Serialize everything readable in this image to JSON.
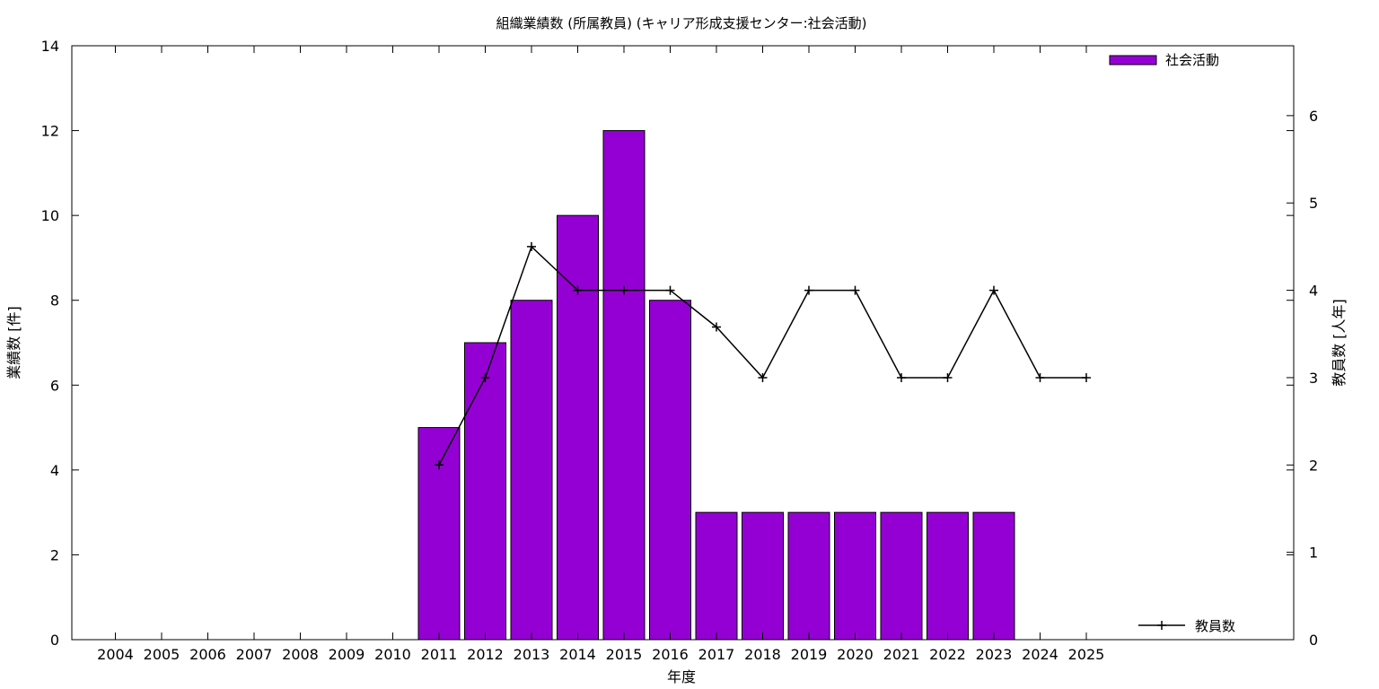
{
  "chart_data": {
    "type": "bar",
    "title": "組織業績数 (所属教員) (キャリア形成支援センター:社会活動)",
    "xlabel": "年度",
    "ylabel": "業績数 [件]",
    "y2label": "教員数 [人年]",
    "categories": [
      "2004",
      "2005",
      "2006",
      "2007",
      "2008",
      "2009",
      "2010",
      "2011",
      "2012",
      "2013",
      "2014",
      "2015",
      "2016",
      "2017",
      "2018",
      "2019",
      "2020",
      "2021",
      "2022",
      "2023",
      "2024",
      "2025"
    ],
    "ylim": [
      0,
      14
    ],
    "y2lim": [
      0,
      6.8
    ],
    "yticks": [
      0,
      2,
      4,
      6,
      8,
      10,
      12,
      14
    ],
    "y2ticks": [
      0,
      1,
      2,
      3,
      4,
      5,
      6
    ],
    "grid": false,
    "series": [
      {
        "name": "社会活動",
        "kind": "bar",
        "axis": "left",
        "color": "#9400d3",
        "values": [
          0,
          0,
          0,
          0,
          0,
          0,
          0,
          5,
          7,
          8,
          10,
          12,
          8,
          3,
          3,
          3,
          3,
          3,
          3,
          3,
          0,
          0
        ]
      },
      {
        "name": "教員数",
        "kind": "line",
        "axis": "right",
        "color": "#000000",
        "values": [
          null,
          null,
          null,
          null,
          null,
          null,
          null,
          2,
          3,
          4.5,
          4,
          4,
          4,
          3.58,
          3,
          4,
          4,
          3,
          3,
          4,
          3,
          3
        ]
      }
    ],
    "legend": [
      {
        "label": "社会活動",
        "position": "top-right"
      },
      {
        "label": "教員数",
        "position": "bottom-right"
      }
    ]
  }
}
